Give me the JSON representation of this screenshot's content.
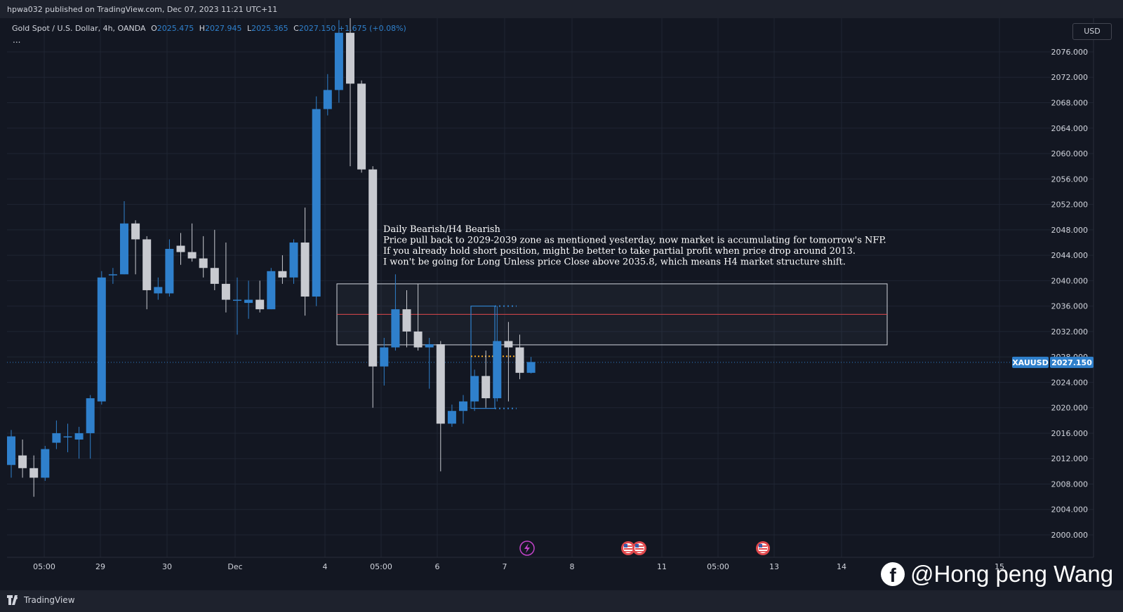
{
  "publish_line": "hpwa032 published on TradingView.com, Dec 07, 2023 11:21 UTC+11",
  "legend": {
    "symbol": "Gold Spot / U.S. Dollar, 4h, OANDA",
    "open_label": "O",
    "open": "2025.475",
    "high_label": "H",
    "high": "2027.945",
    "low_label": "L",
    "low": "2025.365",
    "close_label": "C",
    "close": "2027.150",
    "change": "+1.675 (+0.08%)",
    "more": "..."
  },
  "currency_button": "USD",
  "price_label": {
    "symbol": "XAUUSD",
    "price": "2027.150"
  },
  "annotation": [
    "Daily Bearish/H4 Bearish",
    "Price  pull back to 2029-2039 zone as mentioned yesterday, now market is accumulating for tomorrow's NFP.",
    "If you already hold short position, might be better to take partial profit when price drop around 2013.",
    "I won't be going for Long Unless price Close above 2035.8, which means H4 market structure shift."
  ],
  "brand": "TradingView",
  "watermark": "@Hong peng Wang",
  "watermark_icon": "facebook-icon",
  "colors": {
    "bull": "#2f80cc",
    "bear": "#c8cad0",
    "background": "#131722",
    "grid": "#1f2533",
    "zone_line": "#e0484c"
  },
  "chart_data": {
    "type": "candlestick",
    "title": "Gold Spot / U.S. Dollar, 4h, OANDA",
    "ylim": [
      1998,
      2080
    ],
    "y_ticks": [
      "2000.000",
      "2004.000",
      "2008.000",
      "2012.000",
      "2016.000",
      "2020.000",
      "2024.000",
      "2028.000",
      "2032.000",
      "2036.000",
      "2040.000",
      "2044.000",
      "2048.000",
      "2052.000",
      "2056.000",
      "2060.000",
      "2064.000",
      "2068.000",
      "2072.000",
      "2076.000"
    ],
    "x_ticks": [
      "05:00",
      "29",
      "30",
      "Dec",
      "4",
      "05:00",
      "6",
      "7",
      "8",
      "11",
      "05:00",
      "13",
      "14",
      "15"
    ],
    "last_price": 2027.15,
    "zone": {
      "low": 2029.9,
      "high": 2039.5,
      "mid_line": 2034.7
    },
    "range_box": {
      "low": 2019.9,
      "high": 2036.0
    },
    "range_mid": 2028.1,
    "events": [
      "economic-event-icon",
      "us-flag-icon",
      "us-flag-icon",
      "us-flag-icon"
    ],
    "candles": [
      [
        2011.0,
        2015.5,
        2009.0,
        2016.5
      ],
      [
        2012.5,
        2010.5,
        2009.0,
        2015.0
      ],
      [
        2010.5,
        2009.0,
        2006.0,
        2012.5
      ],
      [
        2009.0,
        2013.5,
        2008.5,
        2014.0
      ],
      [
        2014.5,
        2016.0,
        2013.5,
        2018.0
      ],
      [
        2015.5,
        2015.5,
        2013.0,
        2017.5
      ],
      [
        2015.0,
        2016.0,
        2012.0,
        2017.0
      ],
      [
        2016.0,
        2021.5,
        2012.0,
        2022.0
      ],
      [
        2021.0,
        2040.5,
        2020.5,
        2041.5
      ],
      [
        2041.0,
        2041.0,
        2039.5,
        2042.0
      ],
      [
        2041.0,
        2049.0,
        2041.0,
        2052.5
      ],
      [
        2049.0,
        2046.5,
        2041.0,
        2049.5
      ],
      [
        2046.5,
        2038.5,
        2035.5,
        2047.0
      ],
      [
        2038.0,
        2039.0,
        2037.0,
        2040.5
      ],
      [
        2038.0,
        2045.0,
        2037.5,
        2046.5
      ],
      [
        2045.5,
        2044.5,
        2042.5,
        2047.5
      ],
      [
        2044.5,
        2043.5,
        2043.0,
        2049.0
      ],
      [
        2043.5,
        2042.0,
        2040.5,
        2047.0
      ],
      [
        2042.0,
        2039.5,
        2038.5,
        2048.0
      ],
      [
        2039.5,
        2037.0,
        2035.0,
        2046.0
      ],
      [
        2037.0,
        2037.0,
        2031.5,
        2040.5
      ],
      [
        2036.5,
        2037.0,
        2034.0,
        2040.0
      ],
      [
        2037.0,
        2035.5,
        2035.0,
        2040.0
      ],
      [
        2035.5,
        2041.5,
        2035.5,
        2042.0
      ],
      [
        2041.5,
        2040.5,
        2039.5,
        2044.0
      ],
      [
        2040.5,
        2046.0,
        2039.5,
        2046.5
      ],
      [
        2046.0,
        2037.5,
        2034.5,
        2051.5
      ],
      [
        2037.5,
        2067.0,
        2036.0,
        2069.0
      ],
      [
        2067.0,
        2070.0,
        2066.0,
        2072.5
      ],
      [
        2070.0,
        2079.0,
        2068.0,
        2081.0
      ],
      [
        2079.0,
        2071.0,
        2058.0,
        2082.0
      ],
      [
        2071.0,
        2057.5,
        2057.0,
        2071.5
      ],
      [
        2057.5,
        2026.5,
        2020.0,
        2058.0
      ],
      [
        2026.5,
        2029.5,
        2023.5,
        2031.0
      ],
      [
        2029.5,
        2035.5,
        2029.0,
        2041.0
      ],
      [
        2035.5,
        2032.0,
        2029.5,
        2038.5
      ],
      [
        2032.0,
        2029.5,
        2029.0,
        2039.5
      ],
      [
        2029.5,
        2030.0,
        2023.0,
        2031.0
      ],
      [
        2030.0,
        2017.5,
        2010.0,
        2030.5
      ],
      [
        2017.5,
        2019.5,
        2017.0,
        2020.5
      ],
      [
        2019.5,
        2021.0,
        2017.5,
        2022.0
      ],
      [
        2021.0,
        2025.0,
        2019.5,
        2026.0
      ],
      [
        2025.0,
        2021.5,
        2020.0,
        2029.0
      ],
      [
        2021.5,
        2030.5,
        2021.0,
        2036.0
      ],
      [
        2030.5,
        2029.5,
        2021.0,
        2033.5
      ],
      [
        2029.5,
        2025.5,
        2024.5,
        2031.5
      ],
      [
        2025.5,
        2027.2,
        2025.4,
        2028.0
      ]
    ]
  }
}
